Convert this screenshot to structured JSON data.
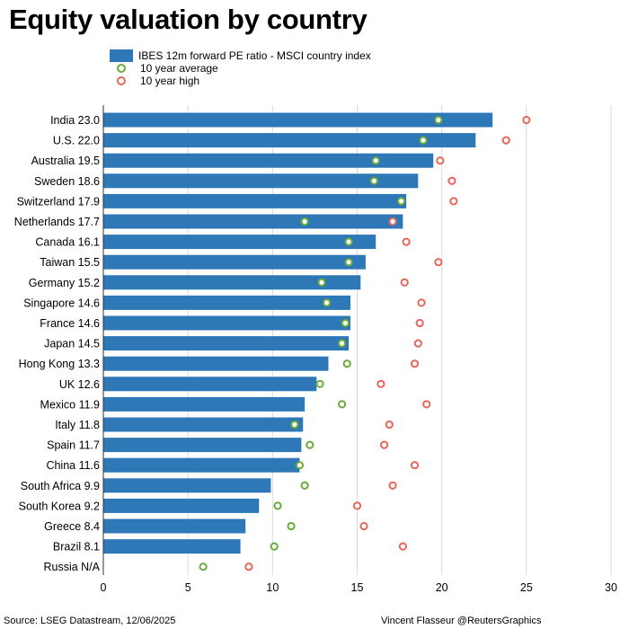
{
  "title": "Equity valuation by country",
  "legend": {
    "bar": "IBES 12m forward PE ratio - MSCI country index",
    "avg": "10 year average",
    "high": "10 year high"
  },
  "colors": {
    "bar": "#2f78b8",
    "avg": "#6aab3a",
    "high": "#e7675a",
    "grid": "#d9d9d9"
  },
  "footer": {
    "source": "Source: LSEG Datastream, 12/06/2025",
    "credit": "Vincent Flasseur @ReutersGraphics"
  },
  "chart_data": {
    "type": "bar",
    "orientation": "horizontal",
    "title": "Equity valuation by country",
    "xlim": [
      0,
      30
    ],
    "xticks": [
      0,
      5,
      10,
      15,
      20,
      25,
      30
    ],
    "grid": true,
    "legend_position": "top-left",
    "categories": [
      "India 23.0",
      "U.S. 22.0",
      "Australia 19.5",
      "Sweden 18.6",
      "Switzerland 17.9",
      "Netherlands 17.7",
      "Canada 16.1",
      "Taiwan 15.5",
      "Germany 15.2",
      "Singapore 14.6",
      "France 14.6",
      "Japan 14.5",
      "Hong Kong 13.3",
      "UK 12.6",
      "Mexico 11.9",
      "Italy 11.8",
      "Spain 11.7",
      "China 11.6",
      "South Africa 9.9",
      "South Korea 9.2",
      "Greece 8.4",
      "Brazil 8.1",
      "Russia N/A"
    ],
    "series": [
      {
        "name": "IBES 12m forward PE ratio - MSCI country index",
        "kind": "bar",
        "values": [
          23.0,
          22.0,
          19.5,
          18.6,
          17.9,
          17.7,
          16.1,
          15.5,
          15.2,
          14.6,
          14.6,
          14.5,
          13.3,
          12.6,
          11.9,
          11.8,
          11.7,
          11.6,
          9.9,
          9.2,
          8.4,
          8.1,
          null
        ]
      },
      {
        "name": "10 year average",
        "kind": "dot",
        "values": [
          19.8,
          18.9,
          16.1,
          16.0,
          17.6,
          11.9,
          14.5,
          14.5,
          12.9,
          13.2,
          14.3,
          14.1,
          14.4,
          12.8,
          14.1,
          11.3,
          12.2,
          11.6,
          11.9,
          10.3,
          11.1,
          10.1,
          5.9
        ]
      },
      {
        "name": "10 year high",
        "kind": "dot",
        "values": [
          25.0,
          23.8,
          19.9,
          20.6,
          20.7,
          17.1,
          17.9,
          19.8,
          17.8,
          18.8,
          18.7,
          18.6,
          18.4,
          16.4,
          19.1,
          16.9,
          16.6,
          18.4,
          17.1,
          15.0,
          15.4,
          17.7,
          8.6
        ]
      }
    ]
  }
}
